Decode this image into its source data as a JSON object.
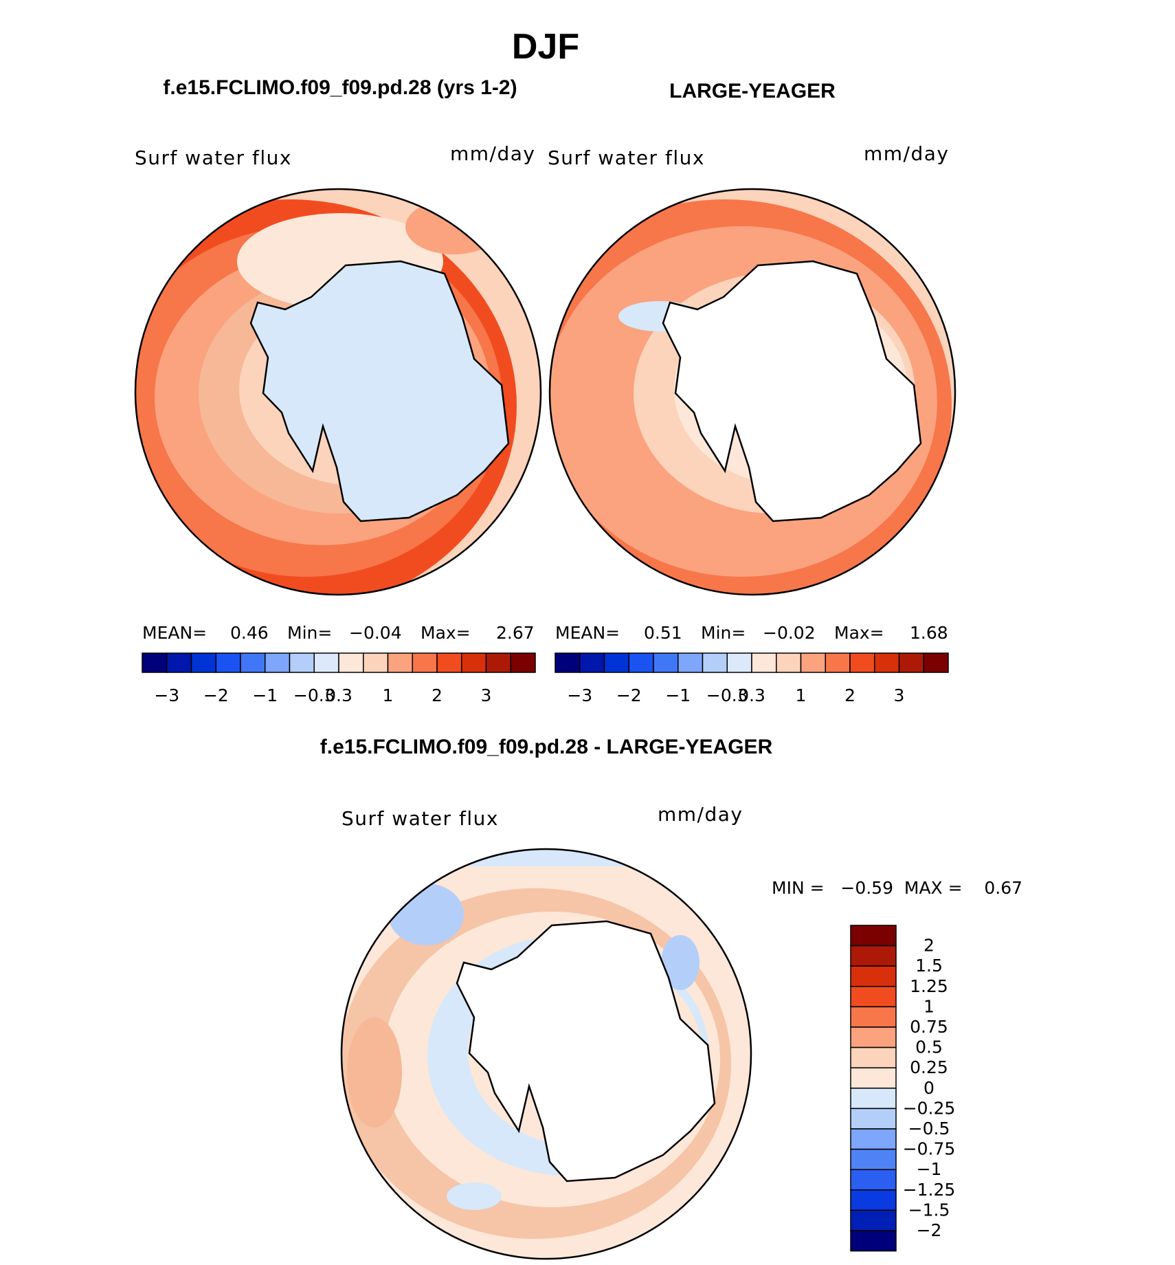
{
  "title": "DJF",
  "panels": [
    {
      "header": "f.e15.FCLIMO.f09_f09.pd.28 (yrs 1-2)",
      "variable": "Surf water flux",
      "units": "mm/day",
      "stats": {
        "mean_label": "MEAN=",
        "mean": "0.46",
        "min_label": "Min=",
        "min": "−0.04",
        "max_label": "Max=",
        "max": "2.67"
      },
      "antarctica_fill": "#d6e8fa",
      "rings": [
        "#f14c20",
        "#f7764a",
        "#faa37e",
        "#f6b896",
        "#fcd3bb"
      ]
    },
    {
      "header": "LARGE-YEAGER",
      "variable": "Surf water flux",
      "units": "mm/day",
      "stats": {
        "mean_label": "MEAN=",
        "mean": "0.51",
        "min_label": "Min=",
        "min": "−0.02",
        "max_label": "Max=",
        "max": "1.68"
      },
      "antarctica_fill": "#ffffff",
      "rings": [
        "#f7764a",
        "#faa37e",
        "#faa37e",
        "#fcd3bb",
        "#fde7d8"
      ]
    }
  ],
  "colorbar_top": {
    "colors": [
      "#00007a",
      "#0016ad",
      "#0033d6",
      "#1a53f2",
      "#3f77f7",
      "#7ea6fa",
      "#b4cefa",
      "#dce9fb",
      "#fde7d8",
      "#fcd3bb",
      "#faa37e",
      "#f7764a",
      "#f14c20",
      "#d9300c",
      "#ac1a07",
      "#7b0000"
    ],
    "tick_labels": [
      "−3",
      "−2",
      "−1",
      "−0.3",
      "0.3",
      "1",
      "2",
      "3"
    ]
  },
  "difference": {
    "header": "f.e15.FCLIMO.f09_f09.pd.28 - LARGE-YEAGER",
    "variable": "Surf water flux",
    "units": "mm/day",
    "minmax": "MIN =   −0.59  MAX =    0.67",
    "antarctica_fill": "#ffffff",
    "rings": [
      "#fde7d8",
      "#f6c4a6",
      "#fde7d8",
      "#d6e8fa",
      "#fde7d8"
    ],
    "colorbar": {
      "colors": [
        "#7b0000",
        "#ac1a07",
        "#d9300c",
        "#f14c20",
        "#f7764a",
        "#faa37e",
        "#fcd3bb",
        "#fde7d8",
        "#d6e8fa",
        "#b4cefa",
        "#7ea6fa",
        "#4f83f5",
        "#2b5ff2",
        "#0a3be0",
        "#0020b5",
        "#00007a"
      ],
      "tick_labels": [
        "2",
        "1.5",
        "1.25",
        "1",
        "0.75",
        "0.5",
        "0.25",
        "0",
        "−0.25",
        "−0.5",
        "−0.75",
        "−1",
        "−1.25",
        "−1.5",
        "−2"
      ]
    }
  }
}
